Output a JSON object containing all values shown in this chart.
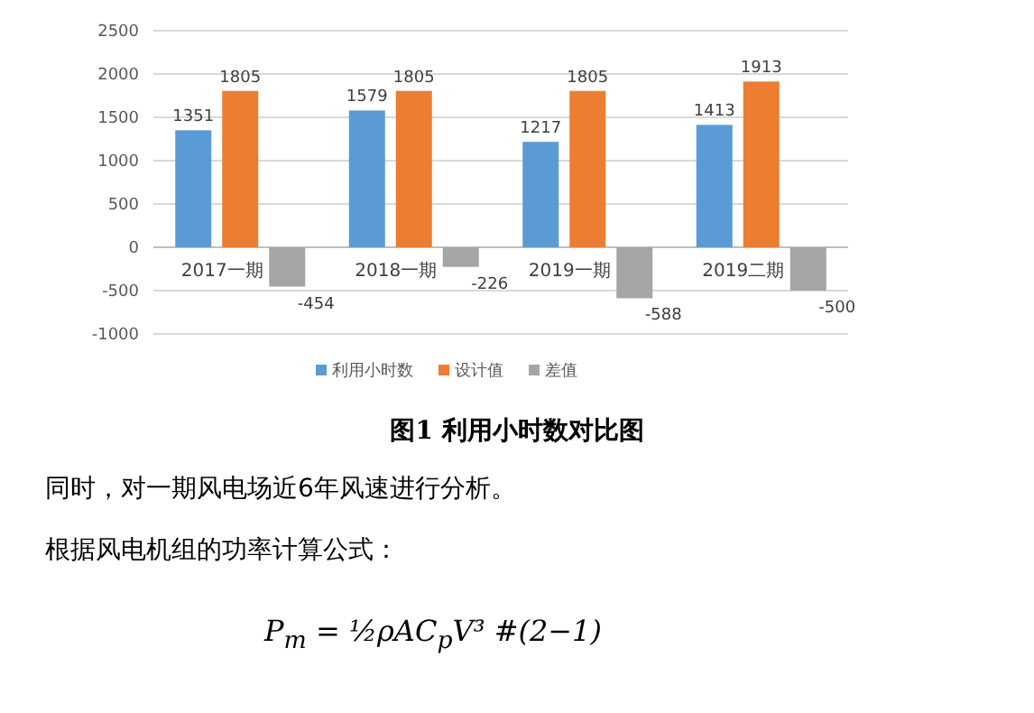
{
  "chart_data": {
    "type": "bar",
    "title": "图1 利用小时数对比图",
    "categories": [
      "2017一期",
      "2018一期",
      "2019一期",
      "2019二期"
    ],
    "series": [
      {
        "name": "利用小时数",
        "color": "#5b9bd5",
        "values": [
          1351,
          1579,
          1217,
          1413
        ]
      },
      {
        "name": "设计值",
        "color": "#ed7d31",
        "values": [
          1805,
          1805,
          1805,
          1913
        ]
      },
      {
        "name": "差值",
        "color": "#a5a5a5",
        "values": [
          -454,
          -226,
          -588,
          -500
        ]
      }
    ],
    "ylim": [
      -1000,
      2500
    ],
    "yticks": [
      -1000,
      -500,
      0,
      500,
      1000,
      1500,
      2000,
      2500
    ],
    "grid": "y",
    "legend": "bottom",
    "data_labels": true,
    "annotations": [
      "同时，对一期风电场近6年风速进行分析。",
      "根据风电机组的功率计算公式：",
      "P$_{m}$ = ½ρAC$_{p}$V³ #(2−1)"
    ]
  }
}
